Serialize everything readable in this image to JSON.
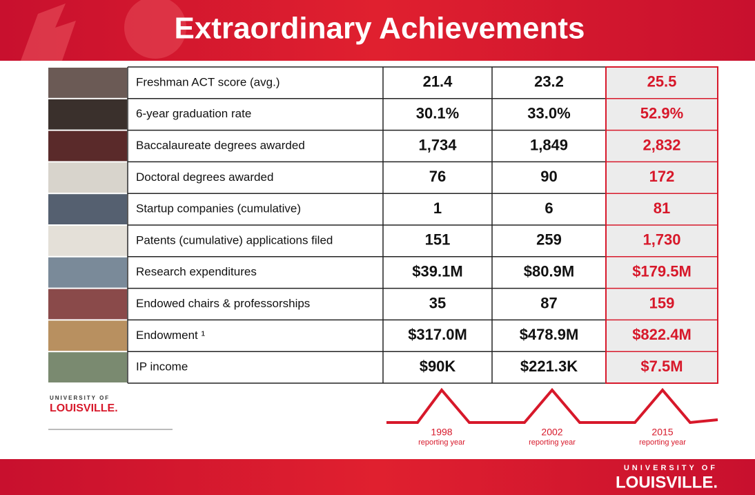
{
  "header": {
    "title": "Extraordinary Achievements"
  },
  "table": {
    "rows": [
      [
        "Freshman ACT score (avg.)",
        "21.4",
        "23.2",
        "25.5"
      ],
      [
        "6-year graduation rate",
        "30.1%",
        "33.0%",
        "52.9%"
      ],
      [
        "Baccalaureate degrees awarded",
        "1,734",
        "1,849",
        "2,832"
      ],
      [
        "Doctoral degrees awarded",
        "76",
        "90",
        "172"
      ],
      [
        "Startup companies (cumulative)",
        "1",
        "6",
        "81"
      ],
      [
        "Patents (cumulative) applications filed",
        "151",
        "259",
        "1,730"
      ],
      [
        "Research expenditures",
        "$39.1M",
        "$80.9M",
        "$179.5M"
      ],
      [
        "Endowed chairs & professorships",
        "35",
        "87",
        "159"
      ],
      [
        "Endowment ¹",
        "$317.0M",
        "$478.9M",
        "$822.4M"
      ],
      [
        "IP income",
        "$90K",
        "$221.3K",
        "$7.5M"
      ]
    ]
  },
  "years": [
    {
      "year": "1998",
      "label": "reporting year"
    },
    {
      "year": "2002",
      "label": "reporting year"
    },
    {
      "year": "2015",
      "label": "reporting year"
    }
  ],
  "logos": {
    "top": {
      "line1": "UNIVERSITY OF",
      "line2": "LOUISVILLE."
    },
    "bottom": {
      "line1": "UNIVERSITY OF",
      "line2": "LOUISVILLE."
    }
  }
}
